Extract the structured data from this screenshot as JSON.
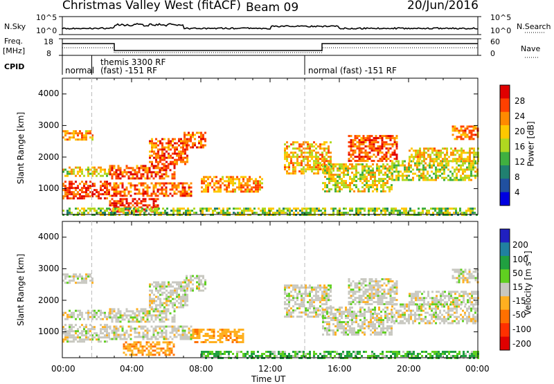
{
  "header": {
    "radar": "Christmas Valley West (fitACF)",
    "beam": "Beam 09",
    "date": "20/Jun/2016"
  },
  "left_labels": {
    "nsky": "N.Sky",
    "nsky_top": "10^5",
    "nsky_bot": "10^0",
    "freq_line1": "Freq.",
    "freq_line2": "[MHz]",
    "freq_top": "18",
    "freq_bot": "8",
    "cpid": "CPID"
  },
  "right_labels": {
    "nsearch": "N.Search",
    "nsearch_top": "10^5",
    "nsearch_bot": "10^0",
    "nave": "Nave",
    "nave_top": "60",
    "nave_bot": "0"
  },
  "cpid_segments": [
    {
      "label": "normal",
      "start_hour": 0
    },
    {
      "label": "themis 3300 RF",
      "start_hour": 1.7
    },
    {
      "label": "(fast) -151 RF",
      "start_hour": 1.7
    },
    {
      "label": "normal (fast) -151 RF",
      "start_hour": 14.0
    }
  ],
  "power_colorbar": {
    "label": "Power [dB]",
    "ticks": [
      "28",
      "24",
      "20",
      "16",
      "12",
      "8",
      "4"
    ],
    "colors": [
      "#e00000",
      "#ff4000",
      "#ff8a00",
      "#ffc800",
      "#b0d820",
      "#40b040",
      "#208070",
      "#2050a0",
      "#0000e0"
    ]
  },
  "velocity_colorbar": {
    "label": "Velocity [m s⁻¹]",
    "ticks": [
      "200",
      "100",
      "50",
      "15",
      "-15",
      "-50",
      "-100",
      "-200"
    ],
    "colors": [
      "#2020c0",
      "#2080a0",
      "#20a040",
      "#60d020",
      "#c8c8c0",
      "#ffb020",
      "#ff7000",
      "#ff3000",
      "#e00000"
    ]
  },
  "y_axis_label": "Slant Range [km]",
  "x_axis_label": "Time UT",
  "y_ticks": [
    "4000",
    "3000",
    "2000",
    "1000"
  ],
  "x_ticks": [
    "00:00",
    "04:00",
    "08:00",
    "12:00",
    "16:00",
    "20:00",
    "00:00"
  ],
  "chart_data": [
    {
      "type": "heatmap",
      "title": "Power",
      "xlabel": "Time UT",
      "ylabel": "Slant Range [km]",
      "xlim_hours": [
        0,
        24
      ],
      "ylim_km": [
        180,
        4500
      ],
      "clim_db": [
        0,
        30
      ],
      "mode_change_hours": [
        1.7,
        14.0
      ],
      "echo_regions": [
        {
          "t0": 0.0,
          "t1": 1.7,
          "r0": 2550,
          "r1": 2850,
          "value": 22
        },
        {
          "t0": 0.0,
          "t1": 2.7,
          "r0": 700,
          "r1": 1250,
          "value": 27
        },
        {
          "t0": 0.0,
          "t1": 2.7,
          "r0": 1400,
          "r1": 1700,
          "value": 18
        },
        {
          "t0": 2.7,
          "t1": 6.5,
          "r0": 1300,
          "r1": 1750,
          "value": 26
        },
        {
          "t0": 2.7,
          "t1": 7.5,
          "r0": 750,
          "r1": 1200,
          "value": 25
        },
        {
          "t0": 2.7,
          "t1": 5.5,
          "r0": 300,
          "r1": 700,
          "value": 28
        },
        {
          "t0": 5.0,
          "t1": 7.2,
          "r0": 1800,
          "r1": 2600,
          "value": 25
        },
        {
          "t0": 7.0,
          "t1": 8.3,
          "r0": 2300,
          "r1": 2800,
          "value": 24
        },
        {
          "t0": 8.0,
          "t1": 11.5,
          "r0": 900,
          "r1": 1400,
          "value": 22
        },
        {
          "t0": 12.8,
          "t1": 15.5,
          "r0": 1500,
          "r1": 2500,
          "value": 20
        },
        {
          "t0": 15.0,
          "t1": 19.0,
          "r0": 900,
          "r1": 1800,
          "value": 17
        },
        {
          "t0": 16.5,
          "t1": 19.3,
          "r0": 1900,
          "r1": 2700,
          "value": 26
        },
        {
          "t0": 19.0,
          "t1": 24.0,
          "r0": 1300,
          "r1": 1900,
          "value": 16
        },
        {
          "t0": 20.0,
          "t1": 24.0,
          "r0": 1900,
          "r1": 2300,
          "value": 19
        },
        {
          "t0": 22.5,
          "t1": 24.0,
          "r0": 2600,
          "r1": 3000,
          "value": 23
        },
        {
          "t0": 0.0,
          "t1": 24.0,
          "r0": 180,
          "r1": 400,
          "value": 14
        }
      ]
    },
    {
      "type": "heatmap",
      "title": "Velocity",
      "xlabel": "Time UT",
      "ylabel": "Slant Range [km]",
      "xlim_hours": [
        0,
        24
      ],
      "ylim_km": [
        180,
        4500
      ],
      "clim_ms": [
        -200,
        200
      ],
      "mode_change_hours": [
        1.7,
        14.0
      ],
      "echo_regions": [
        {
          "t0": 0.0,
          "t1": 1.7,
          "r0": 2550,
          "r1": 2850,
          "value": 0
        },
        {
          "t0": 0.0,
          "t1": 2.7,
          "r0": 700,
          "r1": 1250,
          "value": 0
        },
        {
          "t0": 0.0,
          "t1": 2.7,
          "r0": 1400,
          "r1": 1700,
          "value": 0
        },
        {
          "t0": 2.7,
          "t1": 6.5,
          "r0": 1300,
          "r1": 1750,
          "value": 0
        },
        {
          "t0": 2.7,
          "t1": 7.5,
          "r0": 750,
          "r1": 1200,
          "value": 0
        },
        {
          "t0": 3.5,
          "t1": 6.5,
          "r0": 300,
          "r1": 700,
          "value": -40
        },
        {
          "t0": 5.0,
          "t1": 7.2,
          "r0": 1800,
          "r1": 2600,
          "value": 0
        },
        {
          "t0": 7.0,
          "t1": 8.3,
          "r0": 2300,
          "r1": 2800,
          "value": 0
        },
        {
          "t0": 7.5,
          "t1": 10.5,
          "r0": 700,
          "r1": 1100,
          "value": -40
        },
        {
          "t0": 12.8,
          "t1": 15.5,
          "r0": 1500,
          "r1": 2500,
          "value": 0
        },
        {
          "t0": 15.0,
          "t1": 19.0,
          "r0": 900,
          "r1": 1800,
          "value": 0
        },
        {
          "t0": 16.5,
          "t1": 19.3,
          "r0": 1900,
          "r1": 2700,
          "value": 0
        },
        {
          "t0": 19.0,
          "t1": 24.0,
          "r0": 1300,
          "r1": 1900,
          "value": 0
        },
        {
          "t0": 20.0,
          "t1": 24.0,
          "r0": 1900,
          "r1": 2300,
          "value": 0
        },
        {
          "t0": 22.5,
          "t1": 24.0,
          "r0": 2600,
          "r1": 3000,
          "value": 0
        },
        {
          "t0": 8.0,
          "t1": 24.0,
          "r0": 180,
          "r1": 400,
          "value": 30
        }
      ]
    }
  ]
}
